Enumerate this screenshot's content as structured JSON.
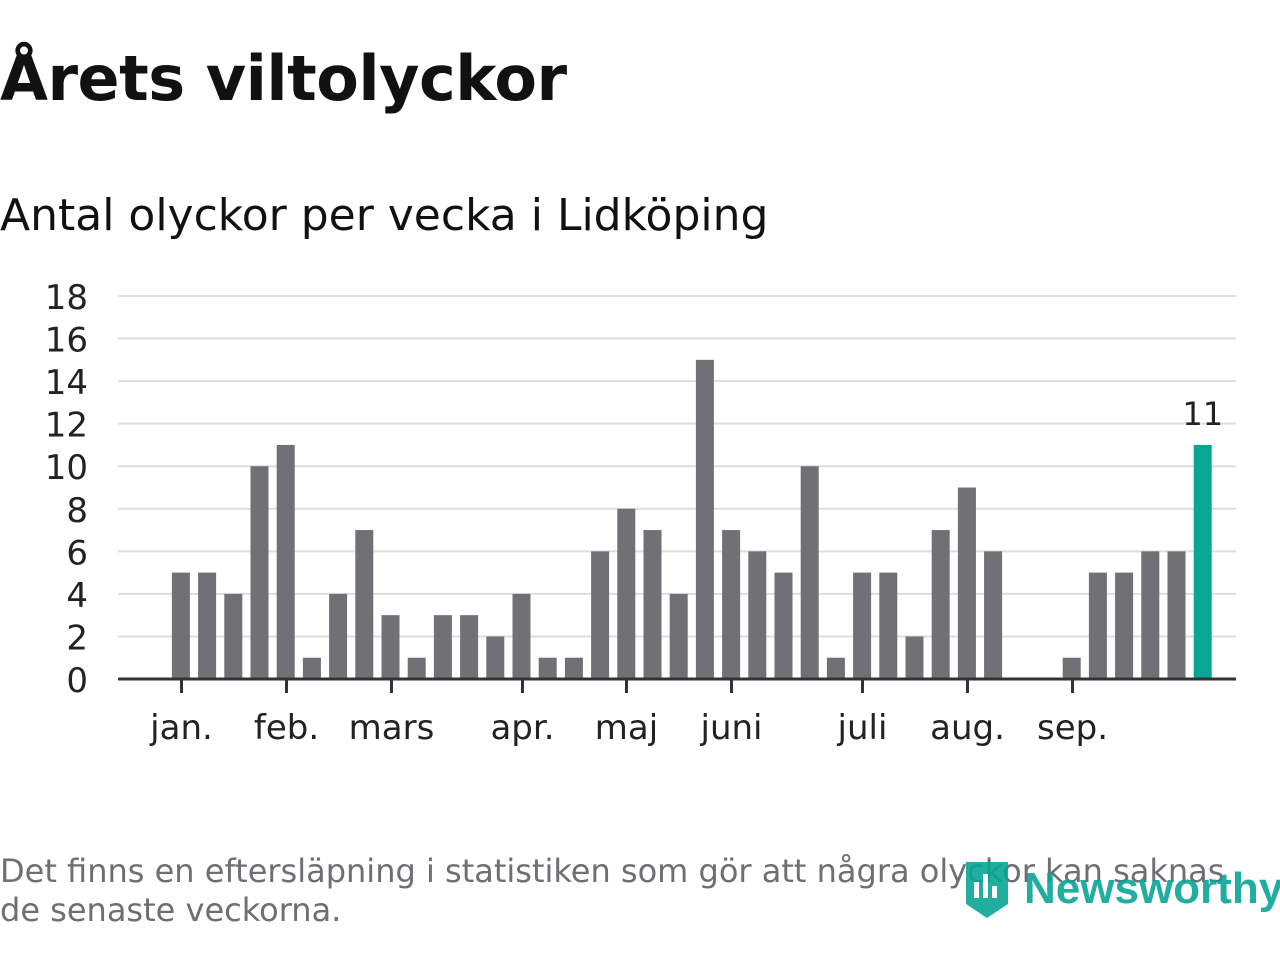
{
  "header": {
    "title": "Årets viltolyckor",
    "subtitle": "Antal olyckor per vecka i Lidköping"
  },
  "footer": {
    "note": "Det finns en eftersläpning i statistiken som gör att några olyckor kan saknas de senaste veckorna.",
    "brand": "Newsworthy"
  },
  "colors": {
    "bar": "#707075",
    "highlight": "#09a696",
    "grid": "#dddddd",
    "axis": "#333333"
  },
  "chart_data": {
    "type": "bar",
    "title": "Årets viltolyckor",
    "subtitle": "Antal olyckor per vecka i Lidköping",
    "xlabel": "",
    "ylabel": "",
    "ylim": [
      0,
      18
    ],
    "yticks": [
      0,
      2,
      4,
      6,
      8,
      10,
      12,
      14,
      16,
      18
    ],
    "grid": true,
    "weeks": [
      1,
      2,
      3,
      4,
      5,
      6,
      7,
      8,
      9,
      10,
      11,
      12,
      13,
      14,
      15,
      16,
      17,
      18,
      19,
      20,
      21,
      22,
      23,
      24,
      25,
      26,
      27,
      28,
      29,
      30,
      31,
      32,
      33,
      34,
      35,
      36,
      37,
      38,
      39,
      40,
      41,
      42,
      43
    ],
    "values": [
      0,
      0,
      5,
      5,
      4,
      10,
      11,
      1,
      4,
      7,
      3,
      1,
      3,
      3,
      2,
      4,
      1,
      1,
      6,
      8,
      7,
      4,
      15,
      7,
      6,
      5,
      10,
      1,
      5,
      5,
      2,
      7,
      9,
      6,
      0,
      0,
      1,
      5,
      5,
      6,
      6,
      11,
      0
    ],
    "highlight_index": 41,
    "highlight_label": "11",
    "month_ticks": [
      {
        "label": "jan.",
        "week": 3
      },
      {
        "label": "feb.",
        "week": 7
      },
      {
        "label": "mars",
        "week": 11
      },
      {
        "label": "apr.",
        "week": 16
      },
      {
        "label": "maj",
        "week": 20
      },
      {
        "label": "juni",
        "week": 24
      },
      {
        "label": "juli",
        "week": 29
      },
      {
        "label": "aug.",
        "week": 33
      },
      {
        "label": "sep.",
        "week": 37
      }
    ]
  }
}
